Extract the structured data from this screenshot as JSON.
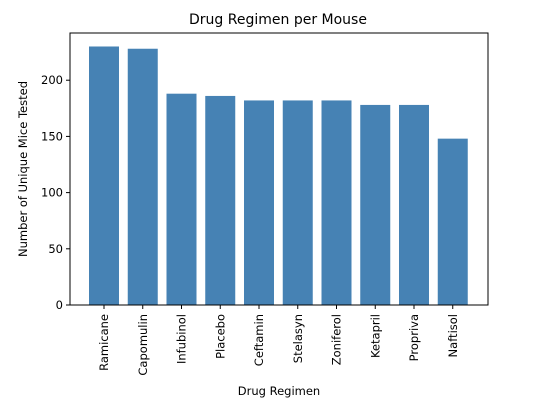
{
  "chart_data": {
    "type": "bar",
    "title": "Drug Regimen per Mouse",
    "xlabel": "Drug Regimen",
    "ylabel": "Number of Unique Mice Tested",
    "categories": [
      "Ramicane",
      "Capomulin",
      "Infubinol",
      "Placebo",
      "Ceftamin",
      "Stelasyn",
      "Zoniferol",
      "Ketapril",
      "Propriva",
      "Naftisol"
    ],
    "values": [
      230,
      228,
      188,
      186,
      182,
      182,
      182,
      178,
      178,
      148
    ],
    "ylim": [
      0,
      242
    ],
    "yticks": [
      0,
      50,
      100,
      150,
      200
    ],
    "bar_color": "#4682b4",
    "grid": false,
    "legend": "none"
  }
}
